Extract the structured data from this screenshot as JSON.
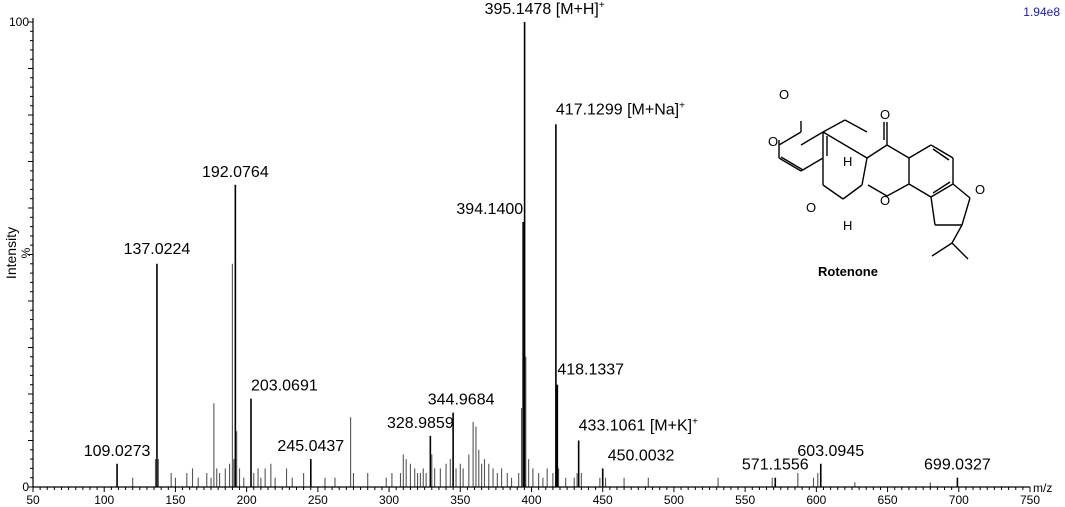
{
  "chart_data": {
    "type": "bar",
    "x_axis_unit": "m/z",
    "ylabel": "Intensity",
    "ylabel_unit": "%",
    "intensity_scale": "1.94e8",
    "xlim": [
      50,
      750
    ],
    "ylim": [
      0,
      100
    ],
    "xticks": [
      50,
      100,
      150,
      200,
      250,
      300,
      350,
      400,
      450,
      500,
      550,
      600,
      650,
      700,
      750
    ],
    "yticks": [
      0,
      100
    ],
    "labeled_peaks": [
      {
        "mz": 109.0273,
        "intensity": 5,
        "label": "109.0273",
        "adduct": ""
      },
      {
        "mz": 137.0224,
        "intensity": 48,
        "label": "137.0224",
        "adduct": ""
      },
      {
        "mz": 192.0764,
        "intensity": 65,
        "label": "192.0764",
        "adduct": ""
      },
      {
        "mz": 203.0691,
        "intensity": 19,
        "label": "203.0691",
        "adduct": ""
      },
      {
        "mz": 245.0437,
        "intensity": 6,
        "label": "245.0437",
        "adduct": ""
      },
      {
        "mz": 328.9859,
        "intensity": 11,
        "label": "328.9859",
        "adduct": ""
      },
      {
        "mz": 344.9684,
        "intensity": 16,
        "label": "344.9684",
        "adduct": ""
      },
      {
        "mz": 394.14,
        "intensity": 57,
        "label": "394.1400",
        "adduct": ""
      },
      {
        "mz": 395.1478,
        "intensity": 100,
        "label": "395.1478",
        "adduct": "[M+H]",
        "charge": "+"
      },
      {
        "mz": 417.1299,
        "intensity": 78,
        "label": "417.1299",
        "adduct": "[M+Na]",
        "charge": "+"
      },
      {
        "mz": 418.1337,
        "intensity": 22,
        "label": "418.1337",
        "adduct": ""
      },
      {
        "mz": 433.1061,
        "intensity": 10,
        "label": "433.1061",
        "adduct": "[M+K]",
        "charge": "+"
      },
      {
        "mz": 450.0032,
        "intensity": 4,
        "label": "450.0032",
        "adduct": ""
      },
      {
        "mz": 571.1556,
        "intensity": 2,
        "label": "571.1556",
        "adduct": ""
      },
      {
        "mz": 603.0945,
        "intensity": 5,
        "label": "603.0945",
        "adduct": ""
      },
      {
        "mz": 699.0327,
        "intensity": 2,
        "label": "699.0327",
        "adduct": ""
      }
    ],
    "minor_peaks": [
      [
        120,
        2
      ],
      [
        136,
        6
      ],
      [
        138,
        6
      ],
      [
        147,
        3
      ],
      [
        150,
        2
      ],
      [
        158,
        3
      ],
      [
        162,
        4
      ],
      [
        166,
        2
      ],
      [
        172,
        3
      ],
      [
        175,
        2
      ],
      [
        177,
        18
      ],
      [
        179,
        4
      ],
      [
        181,
        3
      ],
      [
        185,
        4
      ],
      [
        188,
        5
      ],
      [
        190,
        48
      ],
      [
        191,
        6
      ],
      [
        193,
        12
      ],
      [
        195,
        4
      ],
      [
        198,
        2
      ],
      [
        205,
        3
      ],
      [
        208,
        4
      ],
      [
        210,
        2
      ],
      [
        213,
        4
      ],
      [
        217,
        5
      ],
      [
        220,
        2
      ],
      [
        228,
        4
      ],
      [
        232,
        2
      ],
      [
        240,
        3
      ],
      [
        255,
        2
      ],
      [
        262,
        2
      ],
      [
        273,
        15
      ],
      [
        275,
        3
      ],
      [
        285,
        3
      ],
      [
        298,
        2
      ],
      [
        302,
        3
      ],
      [
        308,
        3
      ],
      [
        310,
        7
      ],
      [
        312,
        6
      ],
      [
        315,
        5
      ],
      [
        318,
        4
      ],
      [
        320,
        3
      ],
      [
        322,
        3
      ],
      [
        324,
        4
      ],
      [
        326,
        3
      ],
      [
        330,
        7
      ],
      [
        332,
        4
      ],
      [
        336,
        4
      ],
      [
        340,
        5
      ],
      [
        343,
        6
      ],
      [
        347,
        4
      ],
      [
        350,
        5
      ],
      [
        352,
        4
      ],
      [
        356,
        7
      ],
      [
        359,
        14
      ],
      [
        361,
        13
      ],
      [
        363,
        8
      ],
      [
        365,
        5
      ],
      [
        367,
        6
      ],
      [
        370,
        5
      ],
      [
        373,
        4
      ],
      [
        376,
        3
      ],
      [
        379,
        4
      ],
      [
        383,
        3
      ],
      [
        386,
        2
      ],
      [
        391,
        3
      ],
      [
        393,
        17
      ],
      [
        396,
        28
      ],
      [
        398,
        6
      ],
      [
        401,
        4
      ],
      [
        405,
        3
      ],
      [
        408,
        2
      ],
      [
        411,
        4
      ],
      [
        415,
        3
      ],
      [
        419,
        4
      ],
      [
        424,
        2
      ],
      [
        430,
        2
      ],
      [
        432,
        3
      ],
      [
        435,
        3
      ],
      [
        448,
        2
      ],
      [
        452,
        2
      ],
      [
        465,
        2
      ],
      [
        482,
        2
      ],
      [
        531,
        2
      ],
      [
        569,
        2
      ],
      [
        587,
        3
      ],
      [
        598,
        2
      ],
      [
        601,
        3
      ],
      [
        627,
        1
      ],
      [
        680,
        1
      ]
    ]
  },
  "structure": {
    "compound_name": "Rotenone",
    "atom_labels": [
      "O",
      "O",
      "O",
      "O",
      "O",
      "O",
      "H",
      "H"
    ]
  }
}
